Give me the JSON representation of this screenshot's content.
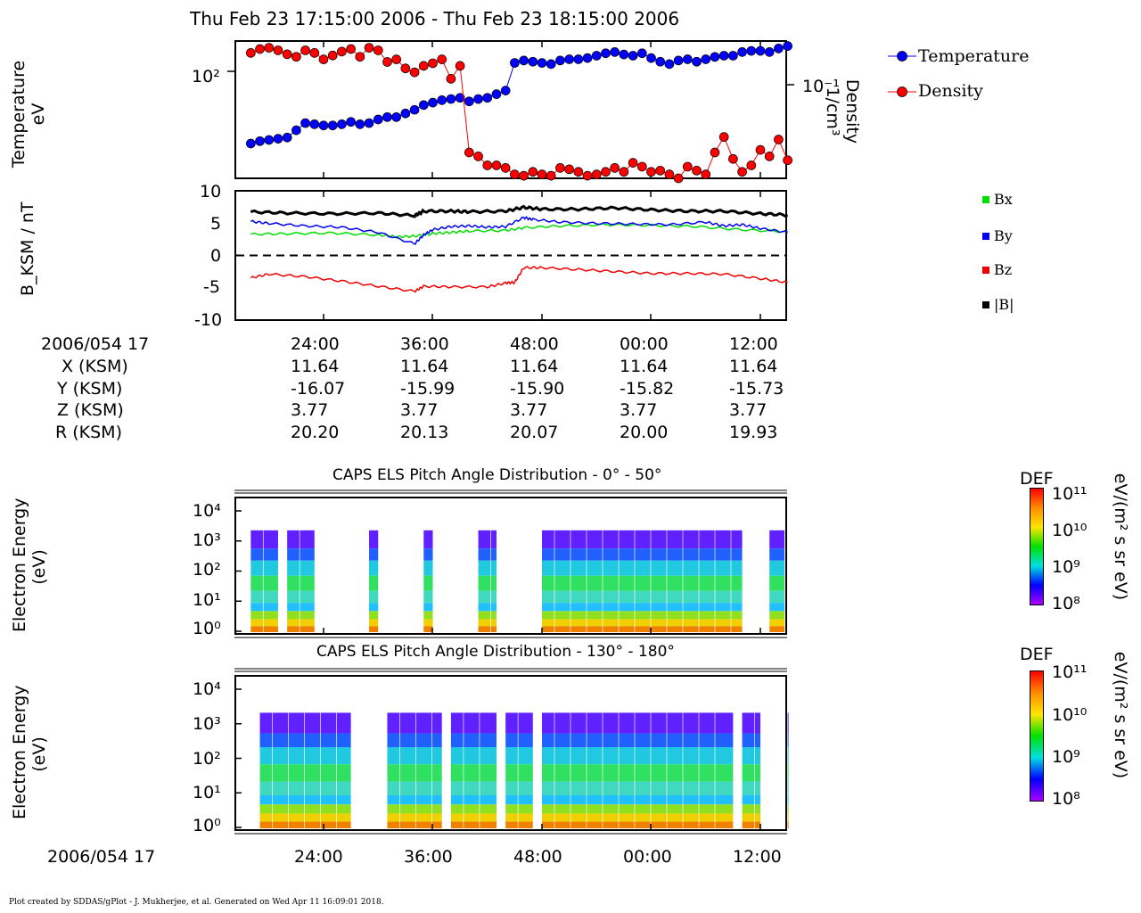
{
  "title": "Thu Feb 23 17:15:00 2006 - Thu Feb 23 18:15:00 2006",
  "footer": "Plot created by SDDAS/gPlot - J. Mukherjee, et al.  Generated on Wed Apr 11 16:09:01 2018.",
  "colors": {
    "temperature": "#0000ff",
    "density": "#ff0000",
    "bx": "#00dd00",
    "by": "#0000ee",
    "bz": "#ee0000",
    "btot": "#000000"
  },
  "chart_data": [
    {
      "type": "scatter",
      "ylabel_left": [
        "Temperature",
        "eV"
      ],
      "ylabel_right": [
        "Density",
        "1/cm³"
      ],
      "left_ticks": [
        "10²"
      ],
      "right_ticks": [
        "10⁻¹"
      ],
      "legend": [
        "Temperature",
        "Density"
      ],
      "series": [
        {
          "name": "Temperature",
          "x_min": [
            16,
            17,
            18,
            19,
            20,
            21,
            22,
            23,
            24,
            25,
            26,
            27,
            28,
            29,
            30,
            31,
            32,
            33,
            34,
            35,
            36,
            37,
            38,
            39,
            40,
            41,
            42,
            43,
            44,
            45,
            46,
            47,
            48,
            49,
            50,
            51,
            52,
            53,
            54,
            55,
            56,
            57,
            58,
            59,
            60,
            61,
            62,
            63,
            64,
            65,
            66,
            67,
            68,
            69,
            70,
            71,
            72,
            73,
            74,
            75
          ],
          "log_y": [
            1.4,
            1.42,
            1.43,
            1.44,
            1.45,
            1.51,
            1.57,
            1.56,
            1.55,
            1.55,
            1.56,
            1.58,
            1.56,
            1.57,
            1.6,
            1.62,
            1.62,
            1.65,
            1.68,
            1.72,
            1.74,
            1.76,
            1.77,
            1.78,
            1.75,
            1.77,
            1.78,
            1.81,
            1.84,
            2.07,
            2.09,
            2.08,
            2.07,
            2.06,
            2.09,
            2.1,
            2.1,
            2.11,
            2.13,
            2.15,
            2.16,
            2.14,
            2.13,
            2.15,
            2.11,
            2.08,
            2.06,
            2.09,
            2.1,
            2.08,
            2.1,
            2.12,
            2.13,
            2.13,
            2.16,
            2.17,
            2.17,
            2.16,
            2.19,
            2.21
          ]
        },
        {
          "name": "Density",
          "x_min": [
            16,
            17,
            18,
            19,
            20,
            21,
            22,
            23,
            24,
            25,
            26,
            27,
            28,
            29,
            30,
            31,
            32,
            33,
            34,
            35,
            36,
            37,
            38,
            39,
            40,
            41,
            42,
            43,
            44,
            45,
            46,
            47,
            48,
            49,
            50,
            51,
            52,
            53,
            54,
            55,
            56,
            57,
            58,
            59,
            60,
            61,
            62,
            63,
            64,
            65,
            66,
            67,
            68,
            69,
            70,
            71,
            72,
            73,
            74,
            75
          ],
          "log_y": [
            -0.33,
            -0.3,
            -0.29,
            -0.31,
            -0.34,
            -0.36,
            -0.31,
            -0.33,
            -0.38,
            -0.35,
            -0.32,
            -0.3,
            -0.36,
            -0.29,
            -0.31,
            -0.4,
            -0.38,
            -0.45,
            -0.48,
            -0.43,
            -0.41,
            -0.38,
            -0.53,
            -0.43,
            -1.1,
            -1.13,
            -1.2,
            -1.2,
            -1.22,
            -1.27,
            -1.28,
            -1.25,
            -1.27,
            -1.28,
            -1.22,
            -1.23,
            -1.25,
            -1.28,
            -1.27,
            -1.25,
            -1.22,
            -1.25,
            -1.18,
            -1.21,
            -1.25,
            -1.24,
            -1.27,
            -1.3,
            -1.21,
            -1.24,
            -1.27,
            -1.1,
            -0.98,
            -1.15,
            -1.25,
            -1.2,
            -1.08,
            -1.13,
            -1.0,
            -1.16
          ]
        }
      ]
    },
    {
      "type": "line",
      "ylabel": "B_KSM / nT",
      "ylim": [
        -10,
        10
      ],
      "yticks": [
        "10",
        "5",
        "0",
        "-5",
        "-10"
      ],
      "legend": [
        "Bx",
        "By",
        "Bz",
        "|B|"
      ],
      "series": [
        {
          "name": "Bx",
          "x_min": [
            16,
            20,
            25,
            30,
            32,
            34,
            36,
            38,
            40,
            44,
            46,
            50,
            55,
            60,
            65,
            70,
            75
          ],
          "y": [
            3.3,
            3.4,
            3.5,
            3.2,
            2.9,
            3.0,
            3.4,
            3.6,
            3.8,
            3.9,
            4.3,
            4.6,
            4.8,
            4.7,
            4.5,
            4.0,
            3.7
          ]
        },
        {
          "name": "By",
          "x_min": [
            16,
            18,
            22,
            26,
            30,
            34,
            35,
            36,
            38,
            40,
            42,
            44,
            46,
            47,
            50,
            54,
            58,
            62,
            66,
            68,
            70,
            72,
            75
          ],
          "y": [
            5.3,
            5.0,
            4.6,
            4.4,
            3.6,
            1.8,
            3.2,
            4.0,
            4.5,
            4.6,
            4.4,
            4.5,
            5.9,
            5.6,
            5.2,
            5.0,
            4.9,
            4.8,
            5.2,
            4.6,
            4.8,
            4.2,
            3.6
          ]
        },
        {
          "name": "Bz",
          "x_min": [
            16,
            18,
            22,
            26,
            30,
            34,
            35,
            38,
            42,
            44,
            45,
            46,
            48,
            52,
            56,
            60,
            64,
            68,
            72,
            75
          ],
          "y": [
            -3.5,
            -2.9,
            -3.3,
            -4.0,
            -4.8,
            -5.6,
            -4.8,
            -4.9,
            -4.9,
            -4.3,
            -4.2,
            -1.9,
            -1.9,
            -2.2,
            -2.5,
            -2.8,
            -2.8,
            -2.9,
            -3.6,
            -4.2
          ]
        },
        {
          "name": "|B|",
          "x_min": [
            16,
            20,
            25,
            30,
            34,
            35,
            38,
            40,
            44,
            46,
            48,
            52,
            56,
            60,
            64,
            68,
            72,
            75
          ],
          "y": [
            6.8,
            6.6,
            6.5,
            6.6,
            6.2,
            6.9,
            6.9,
            6.8,
            6.9,
            7.5,
            7.2,
            7.2,
            7.4,
            7.1,
            6.9,
            6.9,
            6.5,
            6.3
          ]
        }
      ]
    },
    {
      "type": "table",
      "header_label": "2006/054 17",
      "times": [
        "24:00",
        "36:00",
        "48:00",
        "00:00",
        "12:00"
      ],
      "rows": [
        {
          "label": "X (KSM)",
          "values": [
            "11.64",
            "11.64",
            "11.64",
            "11.64",
            "11.64"
          ]
        },
        {
          "label": "Y (KSM)",
          "values": [
            "-16.07",
            "-15.99",
            "-15.90",
            "-15.82",
            "-15.73"
          ]
        },
        {
          "label": "Z (KSM)",
          "values": [
            "3.77",
            "3.77",
            "3.77",
            "3.77",
            "3.77"
          ]
        },
        {
          "label": "R (KSM)",
          "values": [
            "20.20",
            "20.13",
            "20.07",
            "20.00",
            "19.93"
          ]
        }
      ]
    },
    {
      "type": "heatmap",
      "title": "CAPS ELS Pitch Angle Distribution - 0° - 50°",
      "ylabel": [
        "Electron Energy",
        "(eV)"
      ],
      "yticks": [
        "10⁴",
        "10³",
        "10²",
        "10¹",
        "10⁰"
      ],
      "colorbar": {
        "label": "DEF",
        "units": "eV/(m² s sr eV)",
        "ticks": [
          "10¹¹",
          "10¹⁰",
          "10⁹",
          "10⁸"
        ]
      },
      "data_intervals_min": [
        [
          16,
          19
        ],
        [
          20,
          23
        ],
        [
          29,
          30
        ],
        [
          35,
          36
        ],
        [
          41,
          43
        ],
        [
          48,
          70
        ],
        [
          73,
          75
        ]
      ]
    },
    {
      "type": "heatmap",
      "title": "CAPS ELS Pitch Angle Distribution - 130° - 180°",
      "ylabel": [
        "Electron Energy",
        "(eV)"
      ],
      "yticks": [
        "10⁴",
        "10³",
        "10²",
        "10¹",
        "10⁰"
      ],
      "colorbar": {
        "label": "DEF",
        "units": "eV/(m² s sr eV)",
        "ticks": [
          "10¹¹",
          "10¹⁰",
          "10⁹",
          "10⁸"
        ]
      },
      "x_axis_label": "2006/054 17",
      "xticks": [
        "24:00",
        "36:00",
        "48:00",
        "00:00",
        "12:00"
      ],
      "data_intervals_min": [
        [
          17,
          27
        ],
        [
          31,
          37
        ],
        [
          38,
          43
        ],
        [
          44,
          47
        ],
        [
          48,
          69
        ],
        [
          70,
          72
        ],
        [
          75,
          76
        ]
      ]
    }
  ]
}
